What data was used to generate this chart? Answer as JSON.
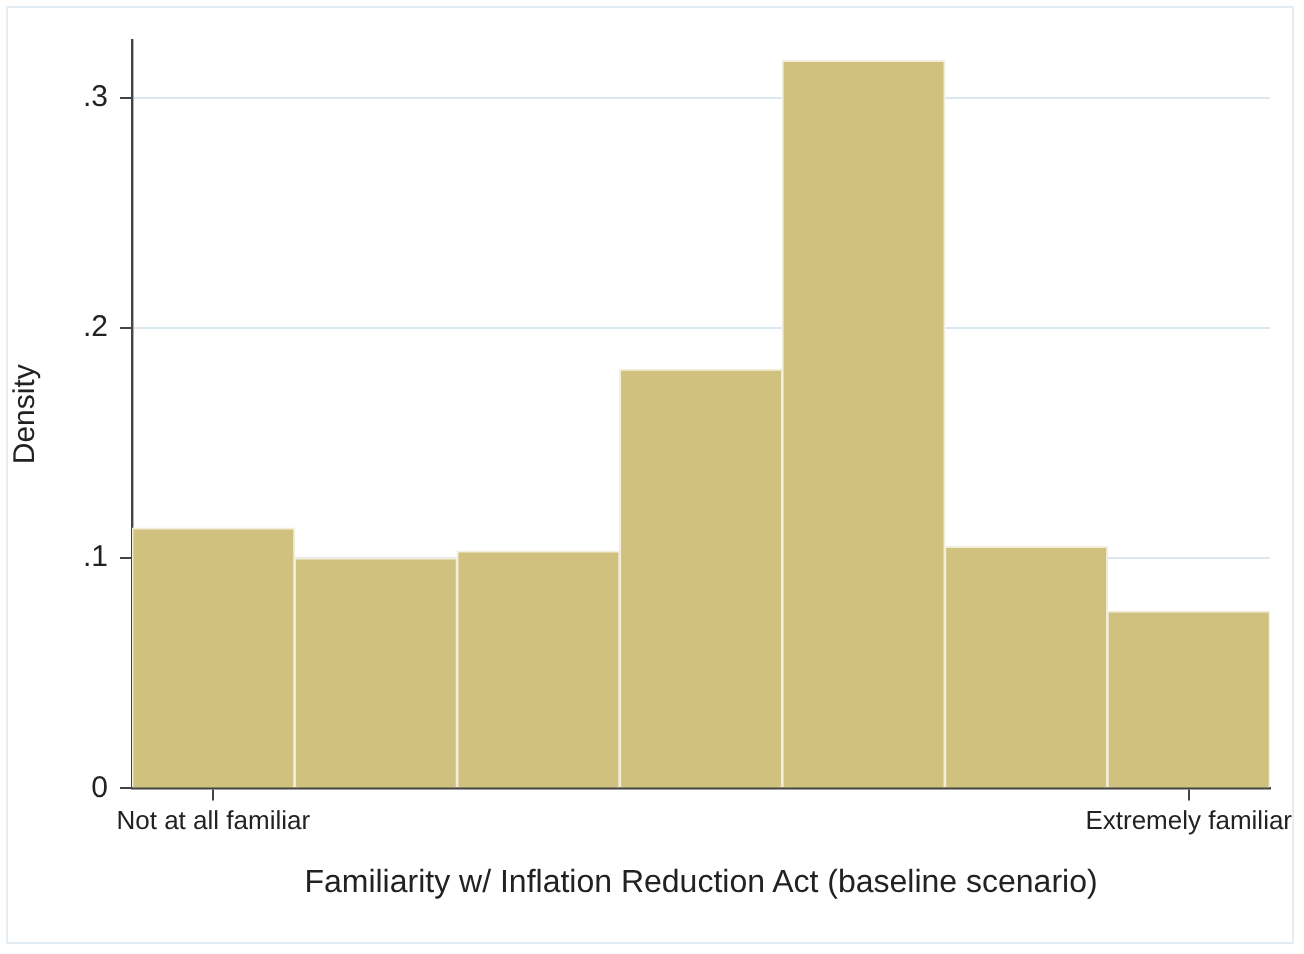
{
  "chart_data": {
    "type": "bar",
    "xlabel": "Familiarity w/ Inflation Reduction Act (baseline scenario)",
    "ylabel": "Density",
    "categories": [
      "Not at all familiar",
      null,
      null,
      null,
      null,
      null,
      "Extremely familiar"
    ],
    "values": [
      0.113,
      0.1,
      0.103,
      0.182,
      0.316,
      0.105,
      0.077
    ],
    "color": "#d0c17f",
    "ylim": [
      0,
      0.325
    ],
    "yticks": [
      0,
      {
        "value": 0.1,
        "label": ".1"
      },
      {
        "value": 0.2,
        "label": ".2"
      },
      {
        "value": 0.3,
        "label": ".3"
      }
    ],
    "grid": "y",
    "legend": false
  }
}
